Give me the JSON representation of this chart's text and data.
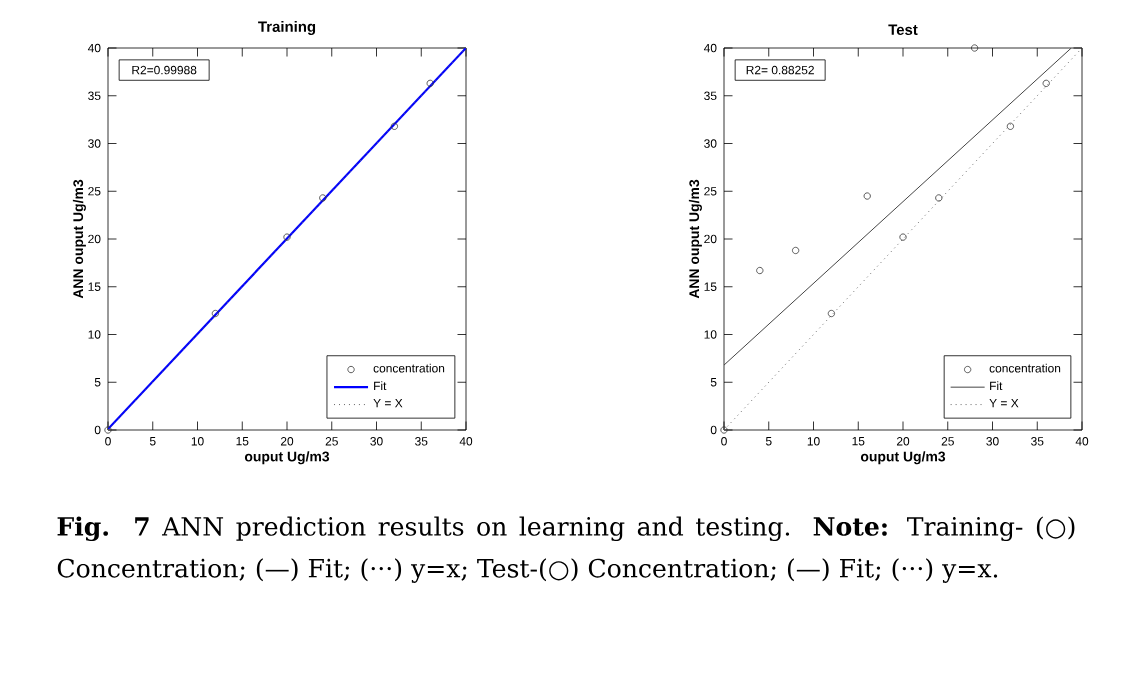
{
  "chart_data": [
    {
      "type": "scatter",
      "title": "Training",
      "xlabel": "ouput Ug/m3",
      "ylabel": "ANN ouput Ug/m3",
      "xlim": [
        0,
        40
      ],
      "ylim": [
        0,
        40
      ],
      "xticks": [
        0,
        5,
        10,
        15,
        20,
        25,
        30,
        35,
        40
      ],
      "yticks": [
        0,
        5,
        10,
        15,
        20,
        25,
        30,
        35,
        40
      ],
      "legend": "bottom right",
      "series": [
        {
          "name": "concentration",
          "marker": "circle",
          "color": "#333333",
          "x": [
            0,
            12,
            20,
            24,
            32,
            36
          ],
          "values": [
            0,
            12.2,
            20.2,
            24.3,
            31.8,
            36.3
          ]
        },
        {
          "name": "Fit",
          "type": "line",
          "marker": "none",
          "color": "#0000ff",
          "line_style": "solid",
          "x": [
            0,
            40
          ],
          "values": [
            0.1,
            40
          ]
        },
        {
          "name": "Y = X",
          "type": "line",
          "marker": "none",
          "color": "#666666",
          "line_style": "dotted",
          "x": [
            0,
            40
          ],
          "values": [
            0,
            40
          ]
        }
      ],
      "annotations": [
        "R2=0.99988",
        "**Fig. 7** ANN prediction results on learning and testing. **Note:** Training- (○) Concentration; (—) Fit; (···) y=x; Test-(○) Concentration; (—) Fit; (···) y=x."
      ]
    },
    {
      "type": "scatter",
      "title": "Test",
      "xlabel": "ouput Ug/m3",
      "ylabel": "ANN ouput Ug/m3",
      "xlim": [
        0,
        40
      ],
      "ylim": [
        0,
        40
      ],
      "xticks": [
        0,
        5,
        10,
        15,
        20,
        25,
        30,
        35,
        40
      ],
      "yticks": [
        0,
        5,
        10,
        15,
        20,
        25,
        30,
        35,
        40
      ],
      "legend": "bottom right",
      "series": [
        {
          "name": "concentration",
          "marker": "circle",
          "color": "#333333",
          "x": [
            0,
            4,
            8,
            12,
            16,
            20,
            24,
            28,
            32,
            36
          ],
          "values": [
            0,
            16.7,
            18.8,
            12.2,
            24.5,
            20.2,
            24.3,
            40,
            31.8,
            36.3
          ]
        },
        {
          "name": "Fit",
          "type": "line",
          "marker": "none",
          "color": "#444444",
          "line_style": "solid",
          "x": [
            0,
            38.8
          ],
          "values": [
            6.8,
            40
          ]
        },
        {
          "name": "Y = X",
          "type": "line",
          "marker": "none",
          "color": "#666666",
          "line_style": "dotted",
          "x": [
            0,
            40
          ],
          "values": [
            0,
            40
          ]
        }
      ],
      "annotations": [
        "R2= 0.88252"
      ]
    }
  ]
}
